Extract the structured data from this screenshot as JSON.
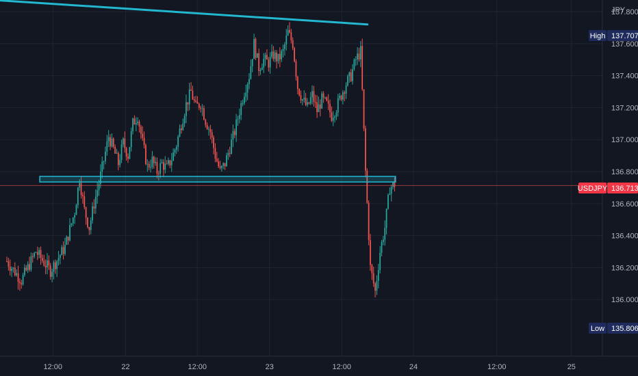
{
  "chart_data": {
    "type": "candlestick",
    "symbol": "USDJPY",
    "currency": "JPY",
    "last_price": "136.713",
    "high_label": "High",
    "high_value": "137.707",
    "low_label": "Low",
    "low_value": "135.806",
    "ylim": [
      135.6,
      138.05
    ],
    "y_ticks": [
      "137.800",
      "137.600",
      "137.400",
      "137.200",
      "137.000",
      "136.800",
      "136.600",
      "136.400",
      "136.200",
      "136.000"
    ],
    "x_ticks": [
      "12:00",
      "22",
      "12:00",
      "23",
      "12:00",
      "24",
      "12:00",
      "25"
    ],
    "colors": {
      "background": "#131722",
      "up": "#26a69a",
      "down": "#ef5350",
      "trendline": "#22b8cf",
      "zone_fill": "#1ec0d8",
      "grid": "#1f2430",
      "axis_text": "#b2b5be",
      "price_badge": "#f23645",
      "hl_badge": "#1e2b5c"
    },
    "price_path": [
      [
        0,
        136.24
      ],
      [
        3,
        136.12
      ],
      [
        6,
        136.3
      ],
      [
        9,
        136.18
      ],
      [
        12,
        136.33
      ],
      [
        14,
        136.55
      ],
      [
        15,
        136.76
      ],
      [
        16,
        136.56
      ],
      [
        17,
        136.45
      ],
      [
        18,
        136.6
      ],
      [
        19,
        136.73
      ],
      [
        20,
        136.87
      ],
      [
        21,
        137.02
      ],
      [
        22,
        136.94
      ],
      [
        23,
        136.85
      ],
      [
        24,
        136.98
      ],
      [
        25,
        136.9
      ],
      [
        26,
        137.1
      ],
      [
        27,
        137.15
      ],
      [
        28,
        136.98
      ],
      [
        29,
        136.83
      ],
      [
        30,
        136.87
      ],
      [
        31,
        136.8
      ],
      [
        32,
        136.85
      ],
      [
        33,
        136.82
      ],
      [
        34,
        136.88
      ],
      [
        35,
        136.97
      ],
      [
        36,
        137.1
      ],
      [
        37,
        137.22
      ],
      [
        38,
        137.3
      ],
      [
        39,
        137.2
      ],
      [
        40,
        137.23
      ],
      [
        41,
        137.12
      ],
      [
        42,
        137.05
      ],
      [
        43,
        136.9
      ],
      [
        44,
        136.8
      ],
      [
        45,
        136.85
      ],
      [
        46,
        136.95
      ],
      [
        47,
        137.05
      ],
      [
        48,
        137.18
      ],
      [
        49,
        137.3
      ],
      [
        50,
        137.4
      ],
      [
        51,
        137.6
      ],
      [
        52,
        137.45
      ],
      [
        53,
        137.5
      ],
      [
        54,
        137.48
      ],
      [
        55,
        137.53
      ],
      [
        56,
        137.5
      ],
      [
        57,
        137.55
      ],
      [
        58,
        137.67
      ],
      [
        59,
        137.6
      ],
      [
        60,
        137.33
      ],
      [
        61,
        137.25
      ],
      [
        62,
        137.2
      ],
      [
        63,
        137.28
      ],
      [
        64,
        137.18
      ],
      [
        65,
        137.25
      ],
      [
        66,
        137.22
      ],
      [
        67,
        137.15
      ],
      [
        68,
        137.2
      ],
      [
        69,
        137.28
      ],
      [
        70,
        137.35
      ],
      [
        71,
        137.4
      ],
      [
        72,
        137.5
      ],
      [
        73,
        137.55
      ],
      [
        74,
        136.8
      ],
      [
        75,
        136.2
      ],
      [
        76,
        136.05
      ],
      [
        77,
        136.3
      ],
      [
        78,
        136.45
      ],
      [
        79,
        136.7
      ],
      [
        80,
        136.72
      ]
    ],
    "trendline": {
      "start": [
        0,
        137.87
      ],
      "end": [
        74.4,
        137.72
      ]
    },
    "zone": {
      "start": 6.8,
      "end": 80.2,
      "top": 136.77,
      "bottom": 136.735
    }
  }
}
